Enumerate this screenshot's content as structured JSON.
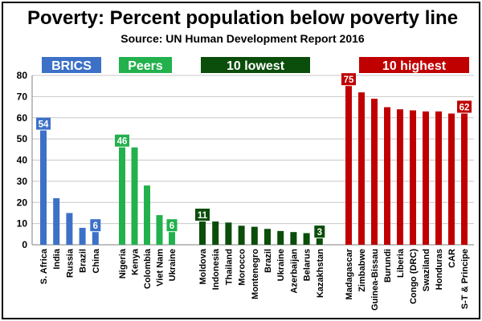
{
  "colors": {
    "brics": "#3d71c8",
    "peers": "#22b14c",
    "lowest": "#0b4d0b",
    "highest": "#c00000",
    "grid": "#c8c8c8"
  },
  "chart_data": {
    "type": "bar",
    "title": "Poverty: Percent population below poverty line",
    "subtitle": "Source: UN Human Development Report 2016",
    "xlabel": "",
    "ylabel": "",
    "ylim": [
      0,
      80
    ],
    "yticks": [
      0,
      10,
      20,
      30,
      40,
      50,
      60,
      70,
      80
    ],
    "grid": true,
    "groups": [
      {
        "name": "BRICS",
        "color_key": "brics",
        "categories": [
          "S. Africa",
          "India",
          "Russia",
          "Brazil",
          "China"
        ],
        "values": [
          54,
          22,
          15,
          8,
          6
        ],
        "labels": [
          "54",
          null,
          null,
          null,
          "6"
        ]
      },
      {
        "name": "Peers",
        "color_key": "peers",
        "categories": [
          "Nigeria",
          "Kenya",
          "Colombia",
          "Viet Nam",
          "Ukraine"
        ],
        "values": [
          46,
          46,
          28,
          14,
          6
        ],
        "labels": [
          "46",
          null,
          null,
          null,
          "6"
        ]
      },
      {
        "name": "10 lowest",
        "color_key": "lowest",
        "categories": [
          "Moldova",
          "Indonesia",
          "Thailand",
          "Morocco",
          "Montenegro",
          "Brazil",
          "Ukraine",
          "Azerbaijan",
          "Belarus",
          "Kazakhstan"
        ],
        "values": [
          11,
          11,
          10.5,
          9,
          8.5,
          7.5,
          6.5,
          6,
          5.5,
          3
        ],
        "labels": [
          "11",
          null,
          null,
          null,
          null,
          null,
          null,
          null,
          null,
          "3"
        ]
      },
      {
        "name": "10 highest",
        "color_key": "highest",
        "categories": [
          "Madagascar",
          "Zimbabwe",
          "Guinea-Bissau",
          "Burundi",
          "Liberia",
          "Congo (DRC)",
          "Swaziland",
          "Honduras",
          "CAR",
          "S-T & Principe"
        ],
        "values": [
          75,
          72,
          69,
          65,
          64,
          63.5,
          63,
          63,
          62,
          62
        ],
        "labels": [
          "75",
          null,
          null,
          null,
          null,
          null,
          null,
          null,
          null,
          "62"
        ]
      }
    ]
  }
}
